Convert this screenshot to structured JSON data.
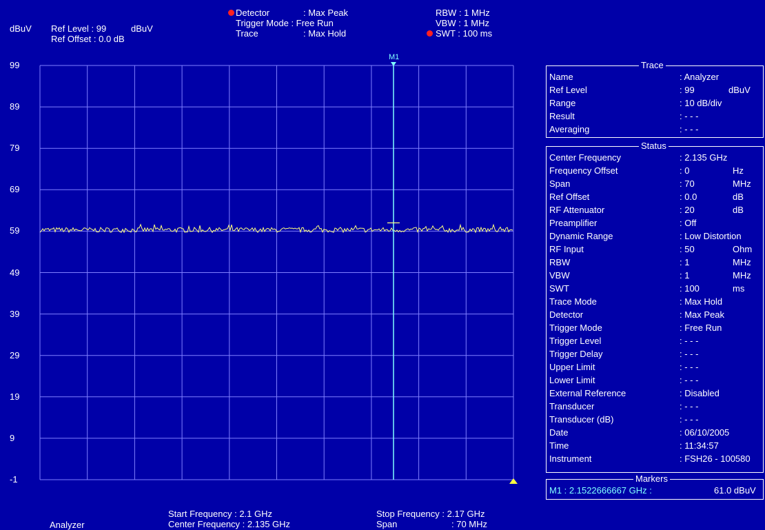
{
  "header": {
    "unit": "dBuV",
    "ref_level_label": "Ref Level : 99",
    "ref_level_unit": "dBuV",
    "ref_offset": "Ref Offset :   0.0 dB",
    "detector_label": "Detector",
    "detector_value": ": Max Peak",
    "trigger_label": "Trigger Mode : Free Run",
    "trace_label": "Trace",
    "trace_value": ": Max Hold",
    "rbw": "RBW :     1 MHz",
    "vbw": "VBW :     1 MHz",
    "swt": "SWT : 100 ms"
  },
  "marker": {
    "label": "M1"
  },
  "chart_data": {
    "type": "line",
    "title": "",
    "xlabel": "",
    "ylabel": "dBuV",
    "xlim": [
      2.1,
      2.17
    ],
    "ylim": [
      -1,
      99
    ],
    "y_ticks": [
      "99",
      "89",
      "79",
      "69",
      "59",
      "49",
      "39",
      "29",
      "19",
      "9",
      "-1"
    ],
    "grid": true,
    "series": [
      {
        "trace_level_dbuv": 59.3,
        "noise_ripple_dbuv": 0.6
      }
    ],
    "marker": {
      "name": "M1",
      "x_ghz": 2.1522666667,
      "y_dbuv": 61.0
    }
  },
  "footer": {
    "mode": "Analyzer",
    "start_freq": "Start Frequency   : 2.1    GHz",
    "center_freq": "Center Frequency : 2.135 GHz",
    "stop_freq": "Stop Frequency :   2.17 GHz",
    "span_label": "Span",
    "span_value": ": 70     MHz"
  },
  "trace_panel": {
    "title": "Trace",
    "rows": [
      {
        "label": "Name",
        "value": ": Analyzer",
        "unit": ""
      },
      {
        "label": "Ref Level",
        "value": ":   99",
        "unit": "dBuV"
      },
      {
        "label": "Range",
        "value": ": 10 dB/div",
        "unit": ""
      },
      {
        "label": "Result",
        "value": ": - - -",
        "unit": ""
      },
      {
        "label": "Averaging",
        "value": ": - - -",
        "unit": ""
      }
    ]
  },
  "status_panel": {
    "title": "Status",
    "rows": [
      {
        "label": "Center Frequency",
        "value": ":     2.135 GHz",
        "unit": ""
      },
      {
        "label": "Frequency Offset",
        "value": ":     0",
        "unit": "Hz"
      },
      {
        "label": "Span",
        "value": ":   70",
        "unit": "MHz"
      },
      {
        "label": "Ref Offset",
        "value": ":     0.0",
        "unit": "dB"
      },
      {
        "label": "RF Attenuator",
        "value": ":   20",
        "unit": "dB"
      },
      {
        "label": "Preamplifier",
        "value": ": Off",
        "unit": ""
      },
      {
        "label": "Dynamic Range",
        "value": ": Low Distortion",
        "unit": ""
      },
      {
        "label": "RF Input",
        "value": ":   50",
        "unit": "Ohm"
      },
      {
        "label": "RBW",
        "value": ":     1",
        "unit": "MHz"
      },
      {
        "label": "VBW",
        "value": ":     1",
        "unit": "MHz"
      },
      {
        "label": "SWT",
        "value": ": 100",
        "unit": "ms"
      },
      {
        "label": "Trace Mode",
        "value": ": Max Hold",
        "unit": ""
      },
      {
        "label": "Detector",
        "value": ": Max Peak",
        "unit": ""
      },
      {
        "label": "Trigger Mode",
        "value": ": Free Run",
        "unit": ""
      },
      {
        "label": "Trigger Level",
        "value": ": - - -",
        "unit": ""
      },
      {
        "label": "Trigger Delay",
        "value": ": - - -",
        "unit": ""
      },
      {
        "label": "Upper Limit",
        "value": ": - - -",
        "unit": ""
      },
      {
        "label": "Lower Limit",
        "value": ": - - -",
        "unit": ""
      },
      {
        "label": "External Reference",
        "value": ": Disabled",
        "unit": ""
      },
      {
        "label": "Transducer",
        "value": ": - - -",
        "unit": ""
      },
      {
        "label": "Transducer (dB)",
        "value": ": - - -",
        "unit": ""
      },
      {
        "label": "Date",
        "value": ": 06/10/2005",
        "unit": ""
      },
      {
        "label": "Time",
        "value": ": 11:34:57",
        "unit": ""
      },
      {
        "label": "Instrument",
        "value": ": FSH26 - 100580",
        "unit": ""
      }
    ]
  },
  "markers_panel": {
    "title": "Markers",
    "m1_freq": "M1 :  2.1522666667 GHz :",
    "m1_level": "61.0 dBuV"
  },
  "colors": {
    "background": "#0000a8",
    "grid": "#8080ff",
    "trace": "#ffff80",
    "marker": "#80ffff",
    "text": "#ffffff",
    "indicator": "#ff2020"
  }
}
